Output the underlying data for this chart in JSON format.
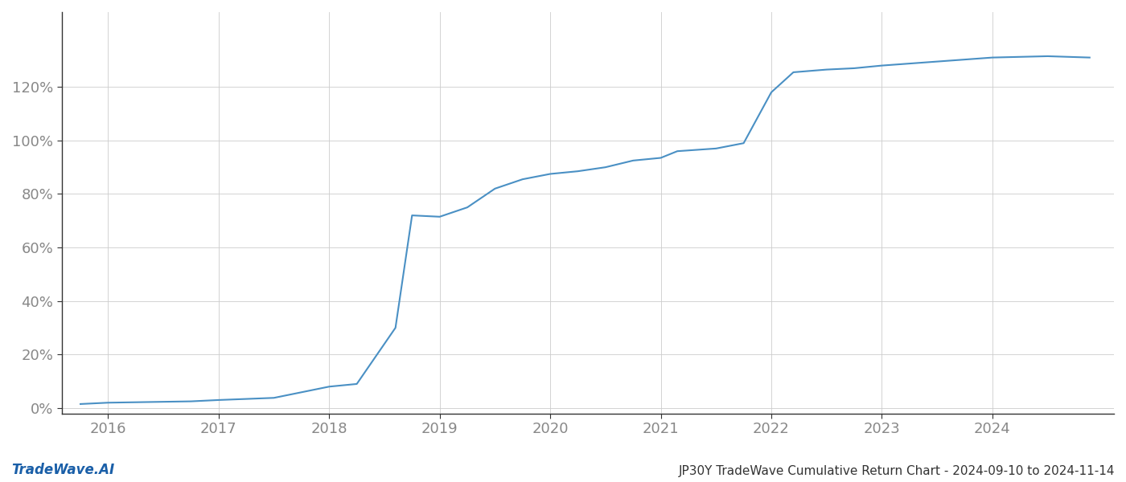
{
  "title": "JP30Y TradeWave Cumulative Return Chart - 2024-09-10 to 2024-11-14",
  "watermark": "TradeWave.AI",
  "line_color": "#4a90c4",
  "line_width": 1.5,
  "background_color": "#ffffff",
  "grid_color": "#cccccc",
  "x_years": [
    2016,
    2017,
    2018,
    2019,
    2020,
    2021,
    2022,
    2023,
    2024
  ],
  "x_data": [
    2015.75,
    2016.0,
    2016.3,
    2016.75,
    2017.0,
    2017.5,
    2018.0,
    2018.25,
    2018.6,
    2018.75,
    2019.0,
    2019.25,
    2019.5,
    2019.75,
    2020.0,
    2020.25,
    2020.5,
    2020.75,
    2021.0,
    2021.15,
    2021.5,
    2021.75,
    2022.0,
    2022.2,
    2022.5,
    2022.75,
    2023.0,
    2023.5,
    2024.0,
    2024.5,
    2024.88
  ],
  "y_data": [
    0.015,
    0.02,
    0.022,
    0.025,
    0.03,
    0.038,
    0.08,
    0.09,
    0.3,
    0.72,
    0.715,
    0.75,
    0.82,
    0.855,
    0.875,
    0.885,
    0.9,
    0.925,
    0.935,
    0.96,
    0.97,
    0.99,
    1.18,
    1.255,
    1.265,
    1.27,
    1.28,
    1.295,
    1.31,
    1.315,
    1.31
  ],
  "ylim": [
    -0.02,
    1.48
  ],
  "xlim": [
    2015.58,
    2025.1
  ],
  "yticks": [
    0.0,
    0.2,
    0.4,
    0.6,
    0.8,
    1.0,
    1.2
  ],
  "ytick_labels": [
    "0%",
    "20%",
    "40%",
    "60%",
    "80%",
    "100%",
    "120%"
  ],
  "tick_color": "#888888",
  "spine_color": "#333333",
  "title_fontsize": 11,
  "tick_fontsize": 13,
  "watermark_fontsize": 12
}
